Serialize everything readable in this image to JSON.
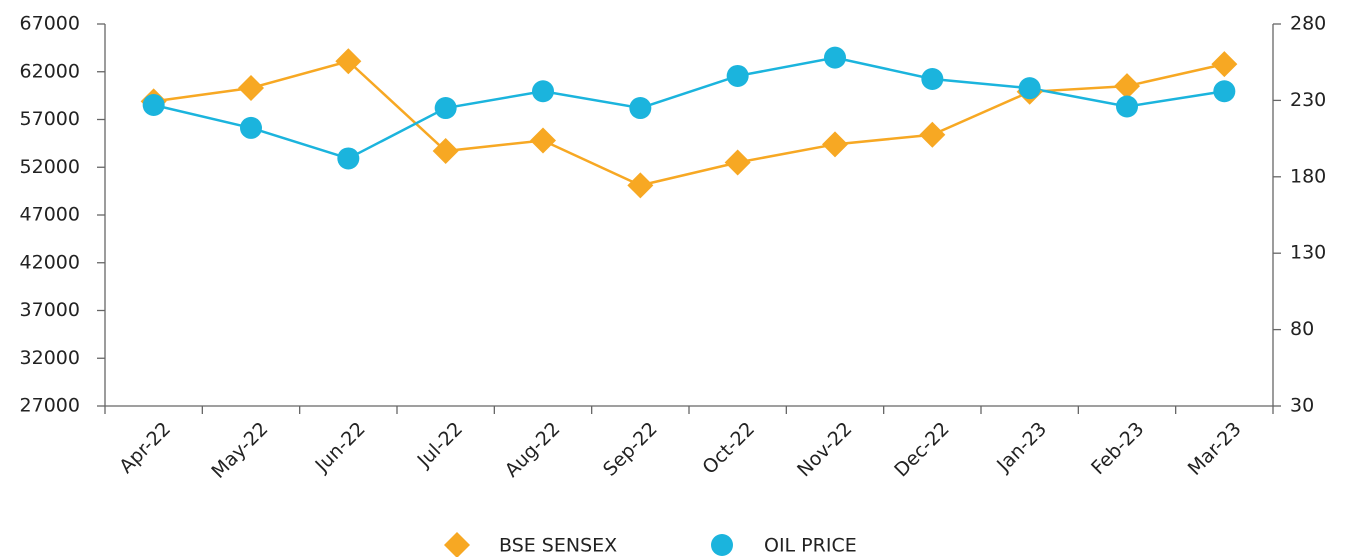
{
  "chart_data": {
    "type": "line",
    "categories": [
      "Apr-22",
      "May-22",
      "Jun-22",
      "Jul-22",
      "Aug-22",
      "Sep-22",
      "Oct-22",
      "Nov-22",
      "Dec-22",
      "Jan-23",
      "Feb-23",
      "Mar-23"
    ],
    "series": [
      {
        "name": "BSE SENSEX",
        "color": "#f7a823",
        "marker": "diamond",
        "axis": "y",
        "values": [
          58900,
          60300,
          63100,
          53700,
          54800,
          50100,
          52500,
          54400,
          55400,
          59900,
          60500,
          62800
        ]
      },
      {
        "name": "OIL PRICE",
        "color": "#1bb4dd",
        "marker": "circle",
        "axis": "y2",
        "values": [
          227,
          212,
          192,
          225,
          236,
          225,
          246,
          258,
          244,
          238,
          226,
          236
        ]
      }
    ],
    "ylim": [
      27000,
      67000
    ],
    "yticks": [
      27000,
      32000,
      37000,
      42000,
      47000,
      52000,
      57000,
      62000,
      67000
    ],
    "y2lim": [
      30,
      280
    ],
    "y2ticks": [
      30,
      80,
      130,
      180,
      230,
      280
    ],
    "grid": false,
    "legend": "bottom"
  }
}
